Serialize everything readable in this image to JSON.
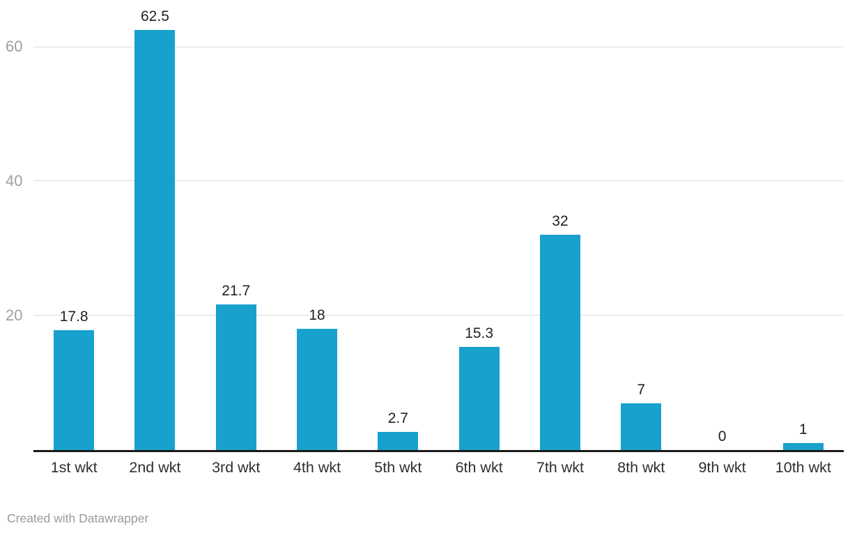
{
  "chart_data": {
    "type": "bar",
    "categories": [
      "1st wkt",
      "2nd wkt",
      "3rd wkt",
      "4th wkt",
      "5th wkt",
      "6th wkt",
      "7th wkt",
      "8th wkt",
      "9th wkt",
      "10th wkt"
    ],
    "values": [
      17.8,
      62.5,
      21.7,
      18,
      2.7,
      15.3,
      32,
      7,
      0,
      1
    ],
    "value_labels": [
      "17.8",
      "62.5",
      "21.7",
      "18",
      "2.7",
      "15.3",
      "32",
      "7",
      "0",
      "1"
    ],
    "title": "",
    "xlabel": "",
    "ylabel": "",
    "ylim": [
      0,
      67
    ],
    "yticks": [
      20,
      40,
      60
    ],
    "grid": true,
    "legend": "none",
    "bar_color": "#18a1cd"
  },
  "colors": {
    "bar": "#18a1cd",
    "gridline": "#dddddd",
    "baseline": "#1a1a1a",
    "value_label": "#222222",
    "y_tick_label": "#9e9e9e",
    "x_cat_label": "#2e2e2e",
    "footer_text": "#9b9b9b",
    "background": "#ffffff"
  },
  "footer": {
    "attribution": "Created with Datawrapper"
  }
}
